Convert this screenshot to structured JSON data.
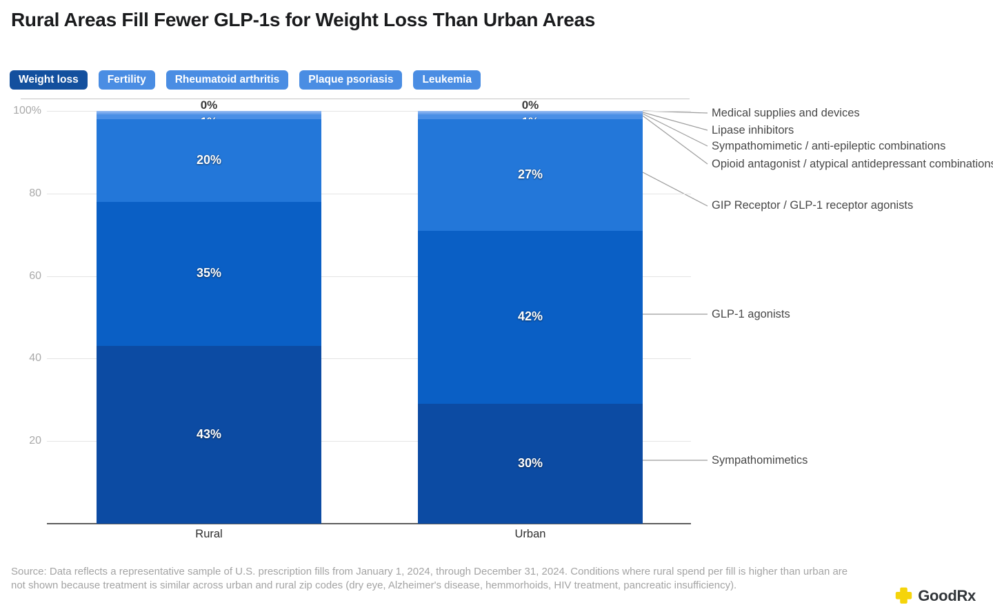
{
  "title": "Rural Areas Fill Fewer GLP-1s for Weight Loss Than Urban Areas",
  "tabs": {
    "active_color": "#13509e",
    "inactive_color": "#4a8de3",
    "items": [
      {
        "label": "Weight loss",
        "active": true
      },
      {
        "label": "Fertility",
        "active": false
      },
      {
        "label": "Rheumatoid arthritis",
        "active": false
      },
      {
        "label": "Plaque psoriasis",
        "active": false
      },
      {
        "label": "Leukemia",
        "active": false
      }
    ]
  },
  "chart_data": {
    "type": "stacked-bar",
    "categories": [
      "Rural",
      "Urban"
    ],
    "ylim": [
      0,
      100
    ],
    "grid": true,
    "legend_position": "right-callouts",
    "yticks": [
      {
        "label": "100%",
        "value": 100
      },
      {
        "label": "80",
        "value": 80
      },
      {
        "label": "60",
        "value": 60
      },
      {
        "label": "40",
        "value": 40
      },
      {
        "label": "20",
        "value": 20
      }
    ],
    "series": [
      {
        "name": "Sympathomimetics",
        "color": "#0c4ba3",
        "values": [
          43,
          30
        ],
        "labels": [
          "43%",
          "30%"
        ]
      },
      {
        "name": "GLP-1 agonists",
        "color": "#0a5fc5",
        "values": [
          35,
          42
        ],
        "labels": [
          "35%",
          "42%"
        ]
      },
      {
        "name": "GIP Receptor / GLP-1 receptor agonists",
        "color": "#2377d9",
        "values": [
          20,
          27
        ],
        "labels": [
          "20%",
          "27%"
        ]
      },
      {
        "name": "Opioid antagonist / atypical antidepressant combinations",
        "color": "#4a8fe6",
        "values": [
          1,
          1
        ],
        "labels": [
          "1%",
          "1%"
        ]
      },
      {
        "name": "Sympathomimetic / anti-epileptic combinations",
        "color": "#69a0eb",
        "values": [
          0,
          0
        ],
        "labels": [
          "",
          ""
        ]
      },
      {
        "name": "Lipase inhibitors",
        "color": "#79aaed",
        "values": [
          0,
          0
        ],
        "labels": [
          "",
          ""
        ]
      },
      {
        "name": "Medical supplies and devices",
        "color": "#8ab4f0",
        "values": [
          0,
          0
        ],
        "labels": [
          "0%",
          "0%"
        ]
      }
    ]
  },
  "source": "Source: Data reflects a representative sample of U.S. prescription fills from January 1, 2024, through December 31, 2024. Conditions where rural spend per fill is higher than urban are not shown because treatment is similar across urban and rural zip codes (dry eye, Alzheimer's disease, hemmorhoids, HIV treatment, pancreatic insufficiency).",
  "logo": {
    "text": "GoodRx",
    "icon": "goodrx-cross-icon",
    "icon_color": "#F5D40B"
  }
}
